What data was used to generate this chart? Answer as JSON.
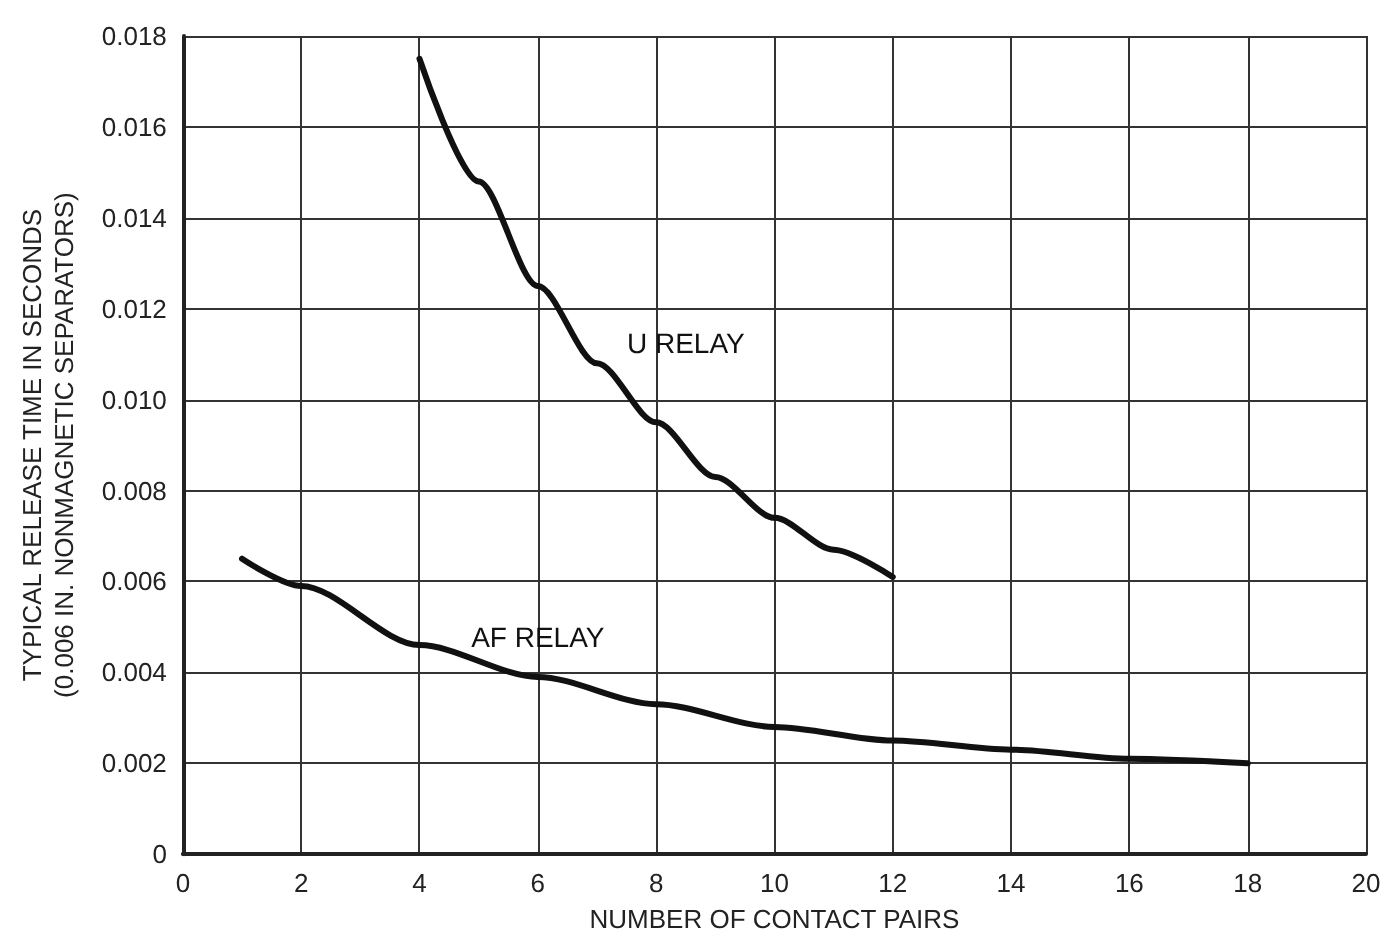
{
  "chart_data": {
    "type": "line",
    "xlabel": "NUMBER OF CONTACT PAIRS",
    "ylabel": "TYPICAL RELEASE TIME IN SECONDS\n(0.006 IN. NONMAGNETIC SEPARATORS)",
    "series": [
      {
        "name": "U RELAY",
        "color": "#111111",
        "x": [
          4,
          5,
          6,
          7,
          8,
          9,
          10,
          11,
          12
        ],
        "values": [
          0.0175,
          0.0148,
          0.0125,
          0.0108,
          0.0095,
          0.0083,
          0.0074,
          0.0067,
          0.0061
        ]
      },
      {
        "name": "AF RELAY",
        "color": "#111111",
        "x": [
          1,
          2,
          4,
          6,
          8,
          10,
          12,
          14,
          16,
          18
        ],
        "values": [
          0.0065,
          0.0059,
          0.0046,
          0.0039,
          0.0033,
          0.0028,
          0.0025,
          0.0023,
          0.0021,
          0.002
        ]
      }
    ],
    "xlim": [
      0,
      20
    ],
    "xticks": [
      0,
      2,
      4,
      6,
      8,
      10,
      12,
      14,
      16,
      18,
      20
    ],
    "ylim": [
      0,
      0.018
    ],
    "yticks": [
      0,
      0.002,
      0.004,
      0.006,
      0.008,
      {
        "value": 0.01,
        "label": "0.010"
      },
      0.012,
      0.014,
      0.016,
      0.018
    ],
    "grid": true,
    "marker": "none",
    "line_style": "solid",
    "legend": false
  }
}
